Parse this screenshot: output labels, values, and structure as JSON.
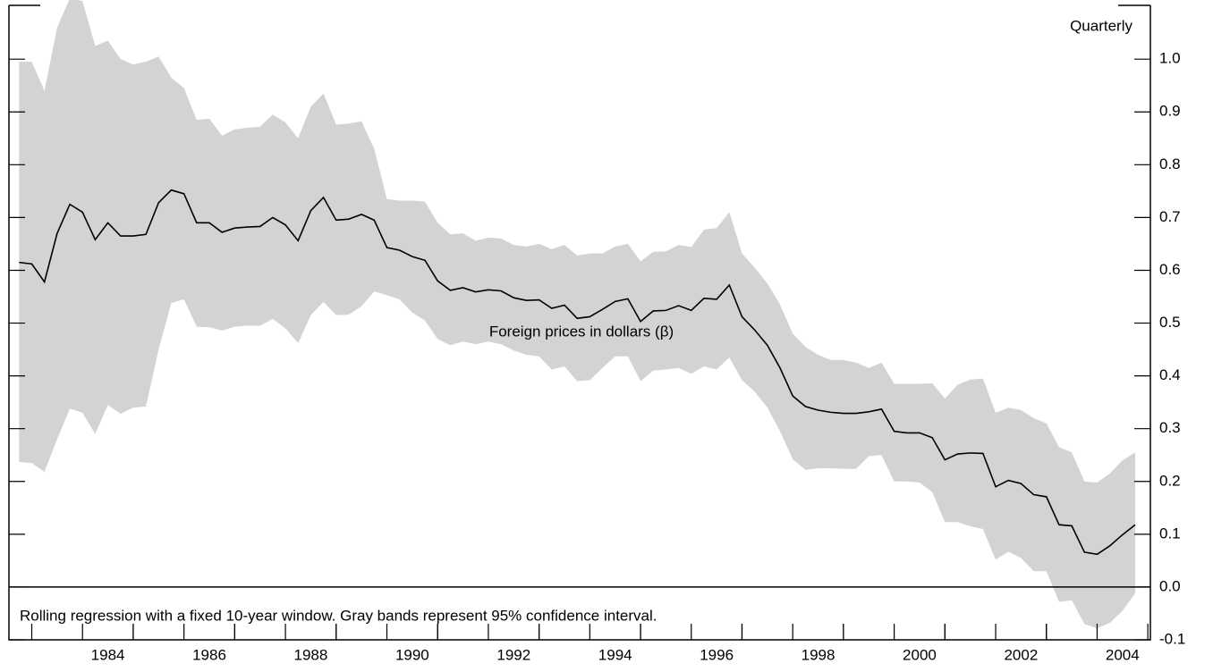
{
  "chart_data": {
    "type": "line",
    "annotation": "Quarterly",
    "note": "Rolling regression with a fixed 10-year window. Gray bands represent 95% confidence interval.",
    "x": [
      1982.75,
      1983,
      1983.25,
      1983.5,
      1983.75,
      1984,
      1984.25,
      1984.5,
      1984.75,
      1985,
      1985.25,
      1985.5,
      1985.75,
      1986,
      1986.25,
      1986.5,
      1986.75,
      1987,
      1987.25,
      1987.5,
      1987.75,
      1988,
      1988.25,
      1988.5,
      1988.75,
      1989,
      1989.25,
      1989.5,
      1989.75,
      1990,
      1990.25,
      1990.5,
      1990.75,
      1991,
      1991.25,
      1991.5,
      1991.75,
      1992,
      1992.25,
      1992.5,
      1992.75,
      1993,
      1993.25,
      1993.5,
      1993.75,
      1994,
      1994.25,
      1994.5,
      1994.75,
      1995,
      1995.25,
      1995.5,
      1995.75,
      1996,
      1996.25,
      1996.5,
      1996.75,
      1997,
      1997.25,
      1997.5,
      1997.75,
      1998,
      1998.25,
      1998.5,
      1998.75,
      1999,
      1999.25,
      1999.5,
      1999.75,
      2000,
      2000.25,
      2000.5,
      2000.75,
      2001,
      2001.25,
      2001.5,
      2001.75,
      2002,
      2002.25,
      2002.5,
      2002.75,
      2003,
      2003.25,
      2003.5,
      2003.75,
      2004,
      2004.25,
      2004.5,
      2004.75
    ],
    "series": [
      {
        "name": "Foreign prices in dollars (β)",
        "color": "#000000",
        "values": [
          0.615,
          0.612,
          0.578,
          0.67,
          0.725,
          0.71,
          0.658,
          0.69,
          0.665,
          0.665,
          0.668,
          0.728,
          0.752,
          0.745,
          0.69,
          0.69,
          0.672,
          0.68,
          0.682,
          0.683,
          0.7,
          0.686,
          0.656,
          0.713,
          0.738,
          0.695,
          0.697,
          0.706,
          0.695,
          0.643,
          0.638,
          0.626,
          0.619,
          0.58,
          0.562,
          0.567,
          0.559,
          0.563,
          0.561,
          0.548,
          0.543,
          0.544,
          0.528,
          0.534,
          0.509,
          0.512,
          0.526,
          0.541,
          0.546,
          0.503,
          0.523,
          0.524,
          0.533,
          0.524,
          0.547,
          0.545,
          0.572,
          0.512,
          0.487,
          0.458,
          0.415,
          0.362,
          0.342,
          0.335,
          0.331,
          0.329,
          0.329,
          0.332,
          0.337,
          0.295,
          0.292,
          0.292,
          0.283,
          0.241,
          0.252,
          0.254,
          0.253,
          0.19,
          0.202,
          0.196,
          0.175,
          0.171,
          0.118,
          0.116,
          0.066,
          0.062,
          0.078,
          0.099,
          0.118
        ]
      }
    ],
    "band": {
      "color": "#d3d3d3",
      "upper": [
        0.995,
        0.995,
        0.94,
        1.06,
        1.115,
        1.11,
        1.025,
        1.035,
        1.0,
        0.99,
        0.995,
        1.005,
        0.965,
        0.945,
        0.885,
        0.887,
        0.855,
        0.867,
        0.87,
        0.872,
        0.895,
        0.88,
        0.85,
        0.91,
        0.935,
        0.876,
        0.878,
        0.882,
        0.83,
        0.735,
        0.732,
        0.732,
        0.73,
        0.69,
        0.668,
        0.67,
        0.656,
        0.662,
        0.66,
        0.648,
        0.645,
        0.65,
        0.64,
        0.648,
        0.628,
        0.632,
        0.632,
        0.645,
        0.65,
        0.617,
        0.635,
        0.636,
        0.648,
        0.644,
        0.677,
        0.68,
        0.71,
        0.632,
        0.605,
        0.575,
        0.535,
        0.48,
        0.455,
        0.44,
        0.43,
        0.43,
        0.425,
        0.415,
        0.425,
        0.385,
        0.385,
        0.385,
        0.386,
        0.357,
        0.383,
        0.393,
        0.395,
        0.33,
        0.34,
        0.335,
        0.32,
        0.31,
        0.265,
        0.255,
        0.2,
        0.198,
        0.215,
        0.24,
        0.255
      ],
      "lower": [
        0.237,
        0.235,
        0.218,
        0.28,
        0.338,
        0.33,
        0.29,
        0.345,
        0.328,
        0.34,
        0.342,
        0.45,
        0.538,
        0.545,
        0.493,
        0.492,
        0.486,
        0.493,
        0.495,
        0.495,
        0.508,
        0.49,
        0.462,
        0.515,
        0.54,
        0.515,
        0.516,
        0.532,
        0.56,
        0.553,
        0.545,
        0.52,
        0.505,
        0.47,
        0.458,
        0.465,
        0.46,
        0.465,
        0.46,
        0.448,
        0.44,
        0.437,
        0.412,
        0.418,
        0.39,
        0.392,
        0.415,
        0.437,
        0.437,
        0.39,
        0.41,
        0.412,
        0.415,
        0.404,
        0.418,
        0.412,
        0.435,
        0.392,
        0.37,
        0.34,
        0.295,
        0.242,
        0.222,
        0.225,
        0.225,
        0.224,
        0.224,
        0.248,
        0.25,
        0.2,
        0.2,
        0.198,
        0.18,
        0.123,
        0.123,
        0.115,
        0.11,
        0.052,
        0.067,
        0.055,
        0.03,
        0.03,
        -0.028,
        -0.025,
        -0.07,
        -0.078,
        -0.068,
        -0.045,
        -0.012
      ]
    },
    "xlim": [
      1982.55,
      2005.05
    ],
    "xticks": [
      1984,
      1986,
      1988,
      1990,
      1992,
      1994,
      1996,
      1998,
      2000,
      2002,
      2004
    ],
    "ylim": [
      -0.1,
      1.112
    ],
    "yticks": [
      -0.1,
      {
        "value": 0,
        "label": "0.0"
      },
      0.1,
      0.2,
      0.3,
      0.4,
      0.5,
      0.6,
      0.7,
      0.8,
      0.9,
      {
        "value": 1,
        "label": "1.0"
      }
    ],
    "zero_line": true
  }
}
